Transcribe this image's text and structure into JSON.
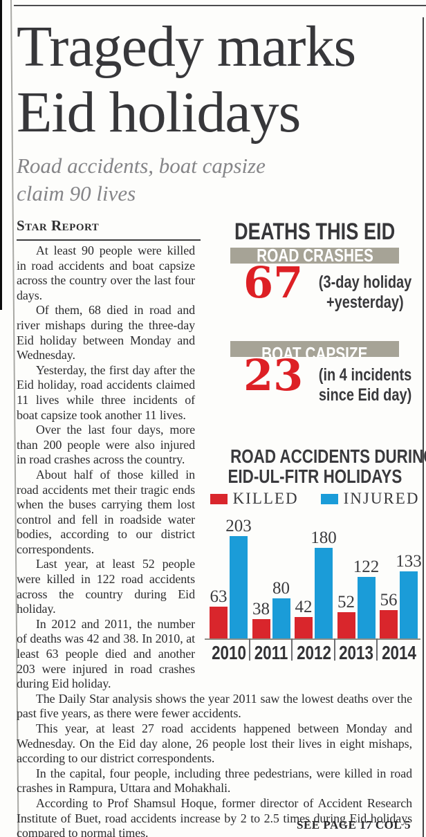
{
  "masthead": {
    "headline_line1": "Tragedy marks",
    "headline_line2": "Eid holidays",
    "subhead_line1": "Road accidents, boat capsize",
    "subhead_line2": "claim 90 lives",
    "byline": "Star Report"
  },
  "article": {
    "paragraphs": [
      "At least 90 people were killed in road accidents and boat capsize across the country over the last four days.",
      "Of them, 68 died in road and river mishaps during the three-day Eid holiday between Monday and Wednesday.",
      "Yesterday, the first day after the Eid holiday, road accidents claimed 11 lives while three incidents of boat capsize took another 11 lives.",
      "Over the last four days, more than 200 people were also injured in road crashes across the country.",
      "About half of those killed in road accidents met their tragic ends when the buses carrying them lost control and fell in roadside water bodies, according to our district correspondents.",
      "Last year, at least 52 people were killed in 122 road accidents across the country during Eid holiday.",
      "In 2012 and 2011, the number of deaths was 42 and 38. In 2010, at least 63 people died and another 203 were injured in road crashes during Eid holiday.",
      "The Daily Star analysis shows the year 2011 saw the lowest deaths over the past five years, as there were fewer accidents.",
      "This year, at least 27 road accidents happened between Monday and Wednesday. On the Eid day alone, 26 people lost their lives in eight mishaps, according to our district correspondents.",
      "In the capital, four people, including three pedestrians, were killed in road crashes in Rampura, Uttara and Mohakhali.",
      "According to Prof Shamsul Hoque, former director of Accident Research Institute of Buet, road accidents increase by 2 to 2.5 times during Eid holidays compared to normal times."
    ],
    "continuation": "SEE PAGE 17 COL 5"
  },
  "infographic": {
    "title": "DEATHS THIS EID",
    "stats": [
      {
        "band": "ROAD CRASHES",
        "value": "67",
        "note_line1": "(3-day holiday",
        "note_line2": "+yesterday)"
      },
      {
        "band": "BOAT CAPSIZE",
        "value": "23",
        "note_line1": "(in 4 incidents",
        "note_line2": "since Eid day)"
      }
    ],
    "colors": {
      "band_bg": "#a6a396",
      "value_red": "#dd2025"
    }
  },
  "chart_data": {
    "type": "bar",
    "title": "ROAD ACCIDENTS DURING EID-UL-FITR HOLIDAYS",
    "title_lines": [
      "ROAD ACCIDENTS DURING",
      "EID-UL-FITR HOLIDAYS"
    ],
    "categories": [
      "2010",
      "2011",
      "2012",
      "2013",
      "2014"
    ],
    "series": [
      {
        "name": "KILLED",
        "color": "#d9262c",
        "values": [
          63,
          38,
          42,
          52,
          56
        ]
      },
      {
        "name": "INJURED",
        "color": "#1b9cd8",
        "values": [
          203,
          80,
          180,
          122,
          133
        ]
      }
    ],
    "ylim": [
      0,
      203
    ],
    "grid": false,
    "legend_position": "top",
    "value_labels": true,
    "xlabel": "",
    "ylabel": ""
  }
}
